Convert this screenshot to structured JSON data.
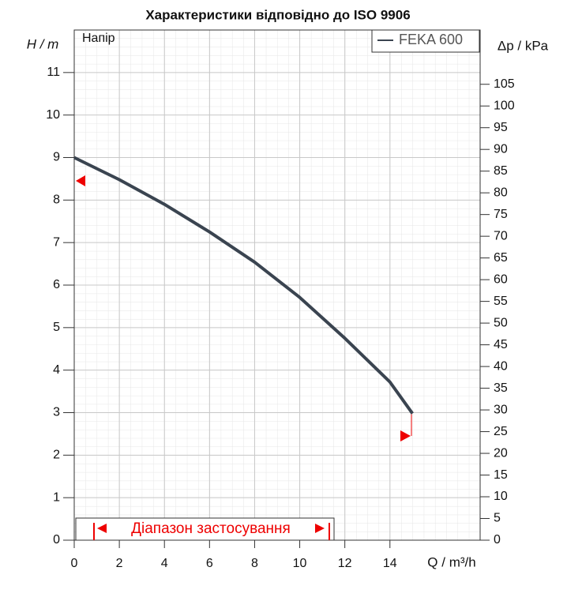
{
  "chart_data": {
    "type": "line",
    "title": "Характеристики відповідно до ISO 9906",
    "y_label": "H / m",
    "y2_label": "Δp / kPa",
    "x_label": "Q / m³/h",
    "annotation": "Напір",
    "range_label": "Діапазон застосування",
    "x": [
      0,
      2,
      4,
      6,
      8,
      10,
      12,
      14,
      15
    ],
    "series": [
      {
        "name": "FEKA 600",
        "color": "#3a4450",
        "values": [
          9.0,
          8.48,
          7.9,
          7.25,
          6.54,
          5.71,
          4.75,
          3.72,
          2.98
        ]
      }
    ],
    "xlim": [
      0,
      18
    ],
    "xticks": [
      0,
      2,
      4,
      6,
      8,
      10,
      12,
      14
    ],
    "ylim": [
      0,
      12
    ],
    "yticks": [
      0,
      1,
      2,
      3,
      4,
      5,
      6,
      7,
      8,
      9,
      10,
      11
    ],
    "y2lim": [
      0,
      117.5
    ],
    "y2ticks": [
      0,
      5,
      10,
      15,
      20,
      25,
      30,
      35,
      40,
      45,
      50,
      55,
      60,
      65,
      70,
      75,
      80,
      85,
      90,
      95,
      100,
      105
    ],
    "grid": true
  }
}
